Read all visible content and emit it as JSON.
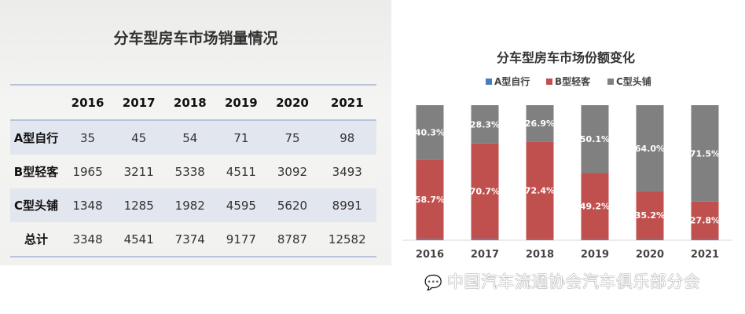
{
  "table": {
    "title": "分车型房车市场销量情况",
    "columns": [
      "2016",
      "2017",
      "2018",
      "2019",
      "2020",
      "2021"
    ],
    "rows": [
      {
        "label": "A型自行",
        "values": [
          "35",
          "45",
          "54",
          "71",
          "75",
          "98"
        ]
      },
      {
        "label": "B型轻客",
        "values": [
          "1965",
          "3211",
          "5338",
          "4511",
          "3092",
          "3493"
        ]
      },
      {
        "label": "C型头铺",
        "values": [
          "1348",
          "1285",
          "1982",
          "4595",
          "5620",
          "8991"
        ]
      },
      {
        "label": "总计",
        "values": [
          "3348",
          "4541",
          "7374",
          "9177",
          "8787",
          "12582"
        ]
      }
    ]
  },
  "chart_data": {
    "type": "bar",
    "stacked": true,
    "title": "分车型房车市场份额变化",
    "categories": [
      "2016",
      "2017",
      "2018",
      "2019",
      "2020",
      "2021"
    ],
    "ylim": [
      0,
      100
    ],
    "grid": false,
    "legend_position": "top",
    "series": [
      {
        "name": "A型自行",
        "color": "#4a7ebb",
        "values": [
          1.0,
          1.0,
          0.7,
          0.8,
          0.9,
          0.8
        ],
        "labels": [
          "",
          "",
          "",
          "",
          "",
          ""
        ]
      },
      {
        "name": "B型轻客",
        "color": "#c0504d",
        "values": [
          58.7,
          70.7,
          72.4,
          49.2,
          35.2,
          27.8
        ],
        "labels": [
          "58.7%",
          "70.7%",
          "72.4%",
          "49.2%",
          "35.2%",
          "27.8%"
        ]
      },
      {
        "name": "C型头铺",
        "color": "#808080",
        "values": [
          40.3,
          28.3,
          26.9,
          50.1,
          64.0,
          71.5
        ],
        "labels": [
          "40.3%",
          "28.3%",
          "26.9%",
          "50.1%",
          "64.0%",
          "71.5%"
        ]
      }
    ]
  },
  "watermark": {
    "icon": "wechat-icon",
    "text": "中国汽车流通协会汽车俱乐部分会"
  }
}
